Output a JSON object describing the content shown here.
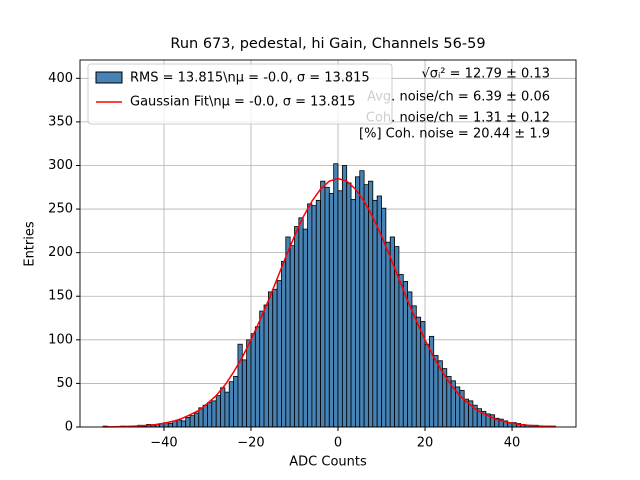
{
  "chart_data": {
    "type": "histogram",
    "title": "Run 673, pedestal, hi Gain, Channels 56-59",
    "x_label": "ADC Counts",
    "y_label": "Entries",
    "xlim": [
      -59.3,
      54.7
    ],
    "ylim": [
      0,
      421
    ],
    "xticks": [
      {
        "value": -40,
        "label": "−40"
      },
      {
        "value": -20,
        "label": "−20"
      },
      0,
      20,
      40
    ],
    "yticks": [
      0,
      50,
      100,
      150,
      200,
      250,
      300,
      350,
      400
    ],
    "grid": true,
    "legend": "upper left",
    "bins": [
      -55,
      -54,
      -53,
      -52,
      -51,
      -50,
      -49,
      -48,
      -47,
      -46,
      -45,
      -44,
      -43,
      -42,
      -41,
      -40,
      -39,
      -38,
      -37,
      -36,
      -35,
      -34,
      -33,
      -32,
      -31,
      -30,
      -29,
      -28,
      -27,
      -26,
      -25,
      -24,
      -23,
      -22,
      -21,
      -20,
      -19,
      -18,
      -17,
      -16,
      -15,
      -14,
      -13,
      -12,
      -11,
      -10,
      -9,
      -8,
      -7,
      -6,
      -5,
      -4,
      -3,
      -2,
      -1,
      0,
      1,
      2,
      3,
      4,
      5,
      6,
      7,
      8,
      9,
      10,
      11,
      12,
      13,
      14,
      15,
      16,
      17,
      18,
      19,
      20,
      21,
      22,
      23,
      24,
      25,
      26,
      27,
      28,
      29,
      30,
      31,
      32,
      33,
      34,
      35,
      36,
      37,
      38,
      39,
      40,
      41,
      42,
      43,
      44,
      45,
      46,
      47,
      48,
      49,
      50
    ],
    "series": [
      {
        "name": "RMS = 13.815\\nμ = -0.0, σ = 13.815",
        "color": "#4682b4",
        "edgecolor": "#000000",
        "values": [
          0,
          1,
          0,
          0,
          0,
          1,
          0,
          1,
          1,
          2,
          1,
          3,
          2,
          3,
          4,
          5,
          4,
          7,
          8,
          7,
          11,
          13,
          16,
          22,
          25,
          28,
          30,
          36,
          45,
          40,
          52,
          58,
          95,
          77,
          100,
          107,
          115,
          133,
          140,
          155,
          158,
          168,
          190,
          218,
          208,
          230,
          240,
          227,
          256,
          254,
          260,
          282,
          275,
          268,
          302,
          271,
          300,
          280,
          261,
          287,
          294,
          278,
          282,
          260,
          265,
          251,
          212,
          218,
          207,
          175,
          167,
          155,
          139,
          126,
          121,
          95,
          104,
          82,
          76,
          67,
          58,
          53,
          46,
          42,
          32,
          30,
          25,
          21,
          18,
          15,
          14,
          10,
          9,
          7,
          5,
          5,
          4,
          3,
          2,
          2,
          2,
          1,
          1,
          1,
          1
        ]
      }
    ],
    "lines": [
      {
        "name": "Gaussian Fit\\nμ = -0.0, σ = 13.815",
        "color": "#ff0000",
        "x": [
          -54,
          -52,
          -50,
          -48,
          -46,
          -44,
          -42,
          -40,
          -38,
          -36,
          -34,
          -32,
          -30,
          -28,
          -26,
          -24,
          -22,
          -20,
          -18,
          -16,
          -14,
          -12,
          -10,
          -8,
          -6,
          -4,
          -2,
          0,
          2,
          4,
          6,
          8,
          10,
          12,
          14,
          16,
          18,
          20,
          22,
          24,
          26,
          28,
          30,
          32,
          34,
          36,
          38,
          40,
          42,
          44,
          46,
          48,
          50
        ],
        "values": [
          0.1,
          0.2,
          0.4,
          0.7,
          1.1,
          1.8,
          2.8,
          4.3,
          6.4,
          9.5,
          14,
          19,
          27,
          36,
          48,
          63,
          80,
          100,
          122,
          145,
          170,
          195,
          219,
          241,
          259,
          273,
          282,
          285,
          282,
          273,
          259,
          241,
          219,
          195,
          170,
          145,
          122,
          100,
          80,
          63,
          48,
          36,
          27,
          19,
          14,
          9.5,
          6.4,
          4.3,
          2.8,
          1.8,
          1.1,
          0.7,
          0.4
        ]
      }
    ],
    "annotations": [
      "√σᵢ² = 12.79 ± 0.13",
      "Avg. noise/ch = 6.39 ± 0.06",
      "Coh. noise/ch = 1.31 ± 0.12",
      "[%] Coh. noise = 20.44 ± 1.9"
    ]
  }
}
